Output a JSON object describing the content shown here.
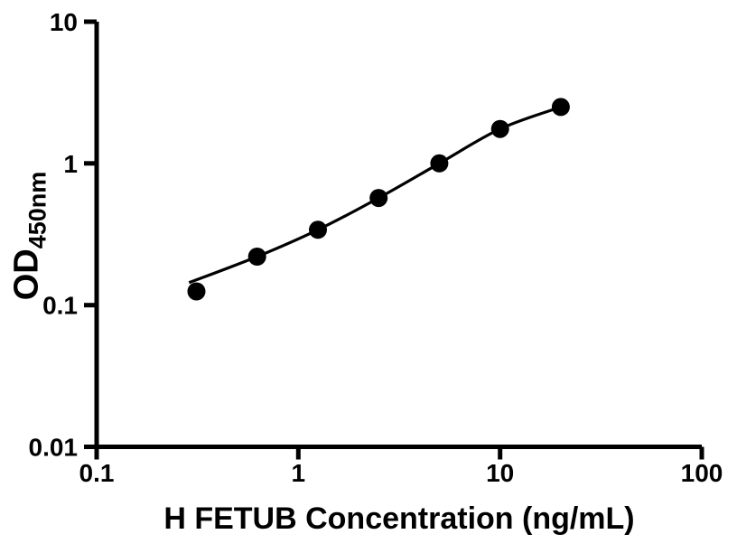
{
  "chart_data": {
    "type": "scatter",
    "title": "",
    "xlabel": "H FETUB Concentration (ng/mL)",
    "ylabel_main": "OD",
    "ylabel_sub": "450nm",
    "x_scale": "log",
    "y_scale": "log",
    "xlim": [
      0.1,
      100
    ],
    "ylim": [
      0.01,
      10
    ],
    "x_ticks": [
      "0.1",
      "1",
      "10",
      "100"
    ],
    "y_ticks": [
      "0.01",
      "0.1",
      "1",
      "10"
    ],
    "grid": false,
    "legend": false,
    "points": [
      {
        "x": 0.3125,
        "y": 0.125
      },
      {
        "x": 0.625,
        "y": 0.22
      },
      {
        "x": 1.25,
        "y": 0.34
      },
      {
        "x": 2.5,
        "y": 0.57
      },
      {
        "x": 5,
        "y": 1.0
      },
      {
        "x": 10,
        "y": 1.75
      },
      {
        "x": 20,
        "y": 2.5
      }
    ],
    "fit_curve_start": {
      "x": 0.287,
      "y": 0.144
    },
    "colors": {
      "axis": "#000000",
      "curve": "#000000",
      "marker": "#000000",
      "background": "#ffffff"
    }
  }
}
